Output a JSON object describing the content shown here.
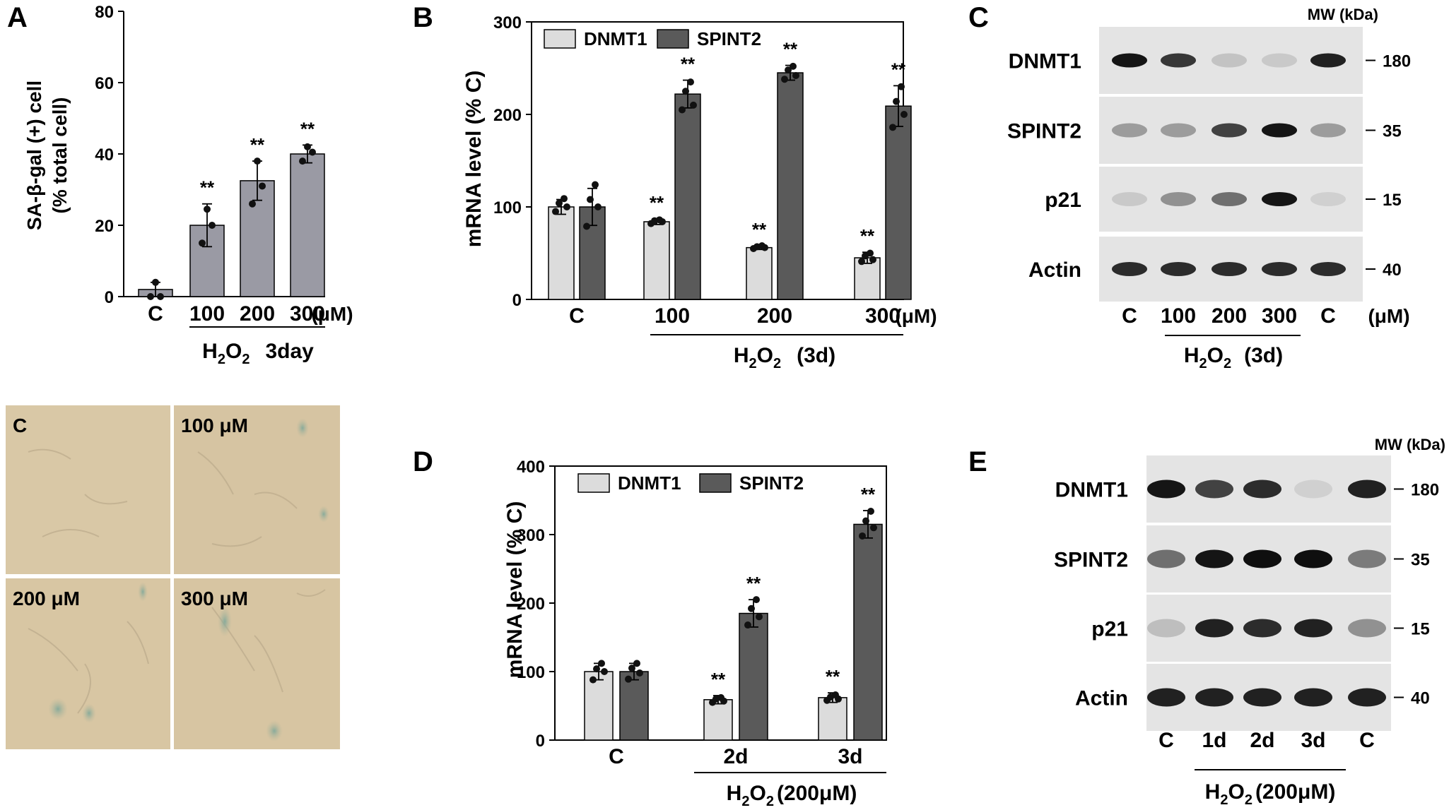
{
  "panels": {
    "A": {
      "letter": "A"
    },
    "B": {
      "letter": "B"
    },
    "C": {
      "letter": "C"
    },
    "D": {
      "letter": "D"
    },
    "E": {
      "letter": "E"
    }
  },
  "chart_data": [
    {
      "panel": "A",
      "type": "bar",
      "categories": [
        "C",
        "100",
        "200",
        "300"
      ],
      "series": [
        {
          "values": [
            2,
            20,
            32.5,
            40
          ],
          "err": [
            2,
            6,
            5.5,
            2.5
          ]
        }
      ],
      "points": [
        [
          0,
          0,
          4
        ],
        [
          15,
          20,
          24.5
        ],
        [
          26,
          31,
          38
        ],
        [
          38,
          40.5,
          42
        ]
      ],
      "significance": [
        "",
        "**",
        "**",
        "**"
      ],
      "ylim": [
        0,
        80
      ],
      "yticks": [
        0,
        20,
        40,
        60,
        80
      ],
      "ylabel_line1": "SA-β-gal (+) cell",
      "ylabel_line2": "(% total cell)",
      "unit": "(μM)",
      "treatment": {
        "h": "H",
        "sub": "2",
        "o": "O",
        "sub2": "2",
        "rest": "3day"
      }
    },
    {
      "panel": "B",
      "type": "bar",
      "categories": [
        "C",
        "100",
        "200",
        "300"
      ],
      "series": [
        {
          "name": "DNMT1",
          "color": "#dcdcdc",
          "values": [
            100,
            84,
            56,
            45
          ],
          "err": [
            8,
            3,
            2,
            6
          ],
          "points": [
            [
              95,
              100,
              104,
              109
            ],
            [
              82,
              84,
              85,
              86
            ],
            [
              55,
              56,
              57,
              58
            ],
            [
              41,
              43,
              47,
              50
            ]
          ]
        },
        {
          "name": "SPINT2",
          "color": "#5a5a5a",
          "values": [
            100,
            222,
            245,
            209
          ],
          "err": [
            20,
            15,
            8,
            22
          ],
          "points": [
            [
              79,
              100,
              108,
              124
            ],
            [
              205,
              210,
              225,
              235
            ],
            [
              238,
              242,
              248,
              252
            ],
            [
              186,
              200,
              214,
              230
            ]
          ]
        }
      ],
      "significance": [
        [
          "",
          ""
        ],
        [
          "**",
          "**"
        ],
        [
          "**",
          "**"
        ],
        [
          "**",
          "**"
        ]
      ],
      "ylim": [
        0,
        300
      ],
      "yticks": [
        0,
        100,
        200,
        300
      ],
      "ylabel": "mRNA level (% C)",
      "unit": "(μM)",
      "treatment": {
        "h": "H",
        "sub": "2",
        "o": "O",
        "sub2": "2",
        "rest": "(3d)"
      }
    },
    {
      "panel": "D",
      "type": "bar",
      "categories": [
        "C",
        "2d",
        "3d"
      ],
      "series": [
        {
          "name": "DNMT1",
          "color": "#dcdcdc",
          "values": [
            100,
            59,
            62
          ],
          "err": [
            12,
            6,
            7
          ],
          "points": [
            [
              88,
              100,
              104,
              112
            ],
            [
              55,
              57,
              60,
              62
            ],
            [
              58,
              60,
              63,
              66
            ]
          ]
        },
        {
          "name": "SPINT2",
          "color": "#5a5a5a",
          "values": [
            100,
            185,
            315
          ],
          "err": [
            12,
            20,
            20
          ],
          "points": [
            [
              89,
              98,
              105,
              112
            ],
            [
              168,
              180,
              192,
              205
            ],
            [
              298,
              310,
              320,
              334
            ]
          ]
        }
      ],
      "significance": [
        [
          "",
          ""
        ],
        [
          "**",
          "**"
        ],
        [
          "**",
          "**"
        ]
      ],
      "ylim": [
        0,
        400
      ],
      "yticks": [
        0,
        100,
        200,
        300,
        400
      ],
      "ylabel": "mRNA level (% C)",
      "treatment": {
        "h": "H",
        "sub": "2",
        "o": "O",
        "sub2": "2",
        "rest": "(200μM)"
      }
    }
  ],
  "micrographs": [
    {
      "label": "C"
    },
    {
      "label": "100 μM"
    },
    {
      "label": "200 μM"
    },
    {
      "label": "300 μM"
    }
  ],
  "blotC": {
    "mw_header": "MW (kDa)",
    "rows": [
      {
        "label": "DNMT1",
        "mw": "180",
        "intensity": [
          0.95,
          0.8,
          0.18,
          0.15,
          0.9
        ]
      },
      {
        "label": "SPINT2",
        "mw": "35",
        "intensity": [
          0.35,
          0.35,
          0.75,
          0.95,
          0.35
        ]
      },
      {
        "label": "p21",
        "mw": "15",
        "intensity": [
          0.15,
          0.4,
          0.55,
          0.95,
          0.12
        ]
      },
      {
        "label": "Actin",
        "mw": "40",
        "intensity": [
          0.85,
          0.85,
          0.85,
          0.85,
          0.85
        ]
      }
    ],
    "lanes": [
      "C",
      "100",
      "200",
      "300",
      "C"
    ],
    "unit": "(μM)",
    "treatment": {
      "h": "H",
      "sub": "2",
      "o": "O",
      "sub2": "2",
      "rest": "(3d)"
    }
  },
  "blotE": {
    "mw_header": "MW (kDa)",
    "rows": [
      {
        "label": "DNMT1",
        "mw": "180",
        "intensity": [
          0.95,
          0.75,
          0.85,
          0.12,
          0.9
        ]
      },
      {
        "label": "SPINT2",
        "mw": "35",
        "intensity": [
          0.55,
          0.95,
          0.98,
          0.98,
          0.5
        ]
      },
      {
        "label": "p21",
        "mw": "15",
        "intensity": [
          0.2,
          0.9,
          0.85,
          0.9,
          0.4
        ]
      },
      {
        "label": "Actin",
        "mw": "40",
        "intensity": [
          0.9,
          0.9,
          0.9,
          0.9,
          0.9
        ]
      }
    ],
    "lanes": [
      "C",
      "1d",
      "2d",
      "3d",
      "C"
    ],
    "treatment": {
      "h": "H",
      "sub": "2",
      "o": "O",
      "sub2": "2",
      "rest": "(200μM)"
    }
  }
}
